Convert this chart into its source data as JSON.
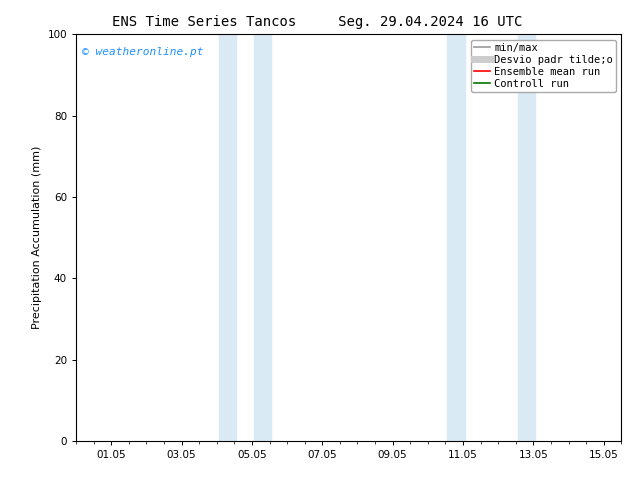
{
  "title_left": "ENS Time Series Tancos",
  "title_right": "Seg. 29.04.2024 16 UTC",
  "ylabel": "Precipitation Accumulation (mm)",
  "ylim": [
    0,
    100
  ],
  "yticks": [
    0,
    20,
    40,
    60,
    80,
    100
  ],
  "xtick_labels": [
    "01.05",
    "03.05",
    "05.05",
    "07.05",
    "09.05",
    "11.05",
    "13.05",
    "15.05"
  ],
  "xtick_positions": [
    1,
    3,
    5,
    7,
    9,
    11,
    13,
    15
  ],
  "xlim": [
    0,
    15.5
  ],
  "shaded_regions": [
    {
      "xmin": 4.05,
      "xmax": 4.55
    },
    {
      "xmin": 5.05,
      "xmax": 5.55
    },
    {
      "xmin": 10.55,
      "xmax": 11.05
    },
    {
      "xmin": 12.55,
      "xmax": 13.05
    }
  ],
  "shaded_color": "#daeaf5",
  "background_color": "#ffffff",
  "watermark_text": "© weatheronline.pt",
  "watermark_color": "#1e90ff",
  "legend_items": [
    {
      "label": "min/max",
      "color": "#999999",
      "lw": 1.2,
      "style": "-"
    },
    {
      "label": "Desvio padr tilde;o",
      "color": "#cccccc",
      "lw": 5,
      "style": "-"
    },
    {
      "label": "Ensemble mean run",
      "color": "#ff0000",
      "lw": 1.2,
      "style": "-"
    },
    {
      "label": "Controll run",
      "color": "#007700",
      "lw": 1.2,
      "style": "-"
    }
  ],
  "title_fontsize": 10,
  "axis_label_fontsize": 8,
  "tick_fontsize": 7.5,
  "watermark_fontsize": 8,
  "legend_fontsize": 7.5
}
